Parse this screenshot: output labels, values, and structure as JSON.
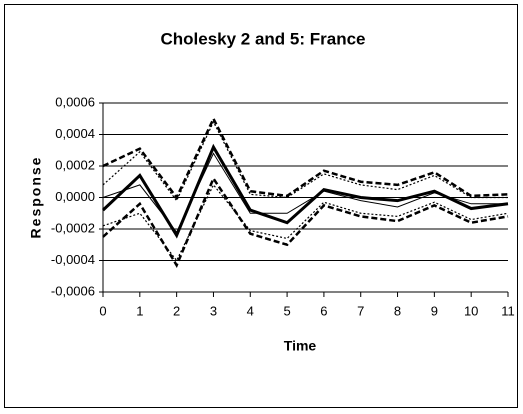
{
  "chart_data": {
    "type": "line",
    "title": "Cholesky 2 and 5: France",
    "x_label": "Time",
    "y_label": "Response",
    "x": [
      0,
      1,
      2,
      3,
      4,
      5,
      6,
      7,
      8,
      9,
      10,
      11
    ],
    "xlim": [
      0,
      11
    ],
    "xticks": [
      0,
      1,
      2,
      3,
      4,
      5,
      6,
      7,
      8,
      9,
      10,
      11
    ],
    "ylim": [
      -0.0006,
      0.0006
    ],
    "yticks": [
      {
        "value": -0.0006,
        "label": "-0,0006"
      },
      {
        "value": -0.0004,
        "label": "-0,0004"
      },
      {
        "value": -0.0002,
        "label": "-0,0002"
      },
      {
        "value": 0,
        "label": "0,0000"
      },
      {
        "value": 0.0002,
        "label": "0,0002"
      },
      {
        "value": 0.0004,
        "label": "0,0004"
      },
      {
        "value": 0.0006,
        "label": "0,0006"
      }
    ],
    "grid": true,
    "series": [
      {
        "color": "#000000",
        "width": 3,
        "dash": "none",
        "values": [
          -8e-05,
          0.00014,
          -0.00024,
          0.00032,
          -8e-05,
          -0.00016,
          5e-05,
          0.0,
          -2e-05,
          4e-05,
          -7e-05,
          -4e-05
        ]
      },
      {
        "color": "#000000",
        "width": 1,
        "dash": "none",
        "values": [
          0.0,
          8e-05,
          -0.00022,
          0.00028,
          -0.0001,
          -0.0001,
          4e-05,
          -2e-05,
          -6e-05,
          3e-05,
          -4e-05,
          -4e-05
        ]
      },
      {
        "color": "#000000",
        "width": 2.5,
        "dash": "6,3",
        "values": [
          0.0002,
          0.00031,
          0.0,
          0.0005,
          4e-05,
          1e-05,
          0.00017,
          0.0001,
          8e-05,
          0.00016,
          1e-05,
          2e-05
        ]
      },
      {
        "color": "#000000",
        "width": 2.5,
        "dash": "6,3",
        "values": [
          -0.00025,
          -4e-05,
          -0.00043,
          0.00012,
          -0.00023,
          -0.0003,
          -5e-05,
          -0.00012,
          -0.00015,
          -5e-05,
          -0.00016,
          -0.00012
        ]
      },
      {
        "color": "#000000",
        "width": 1.2,
        "dash": "2,2",
        "values": [
          8e-05,
          0.00029,
          -2e-05,
          0.00048,
          2e-05,
          0.0,
          0.00015,
          8e-05,
          5e-05,
          0.00014,
          0.0,
          0.0
        ]
      },
      {
        "color": "#000000",
        "width": 1.2,
        "dash": "2,2",
        "values": [
          -0.00018,
          -0.0001,
          -0.0004,
          8e-05,
          -0.00021,
          -0.00026,
          -3e-05,
          -0.0001,
          -0.00012,
          -3e-05,
          -0.00014,
          -0.0001
        ]
      }
    ]
  }
}
